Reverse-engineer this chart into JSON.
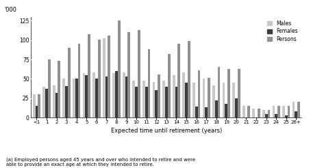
{
  "categories": [
    "<1",
    "1",
    "2",
    "3",
    "4",
    "5",
    "6",
    "7",
    "8",
    "9",
    "10",
    "11",
    "12",
    "13",
    "14",
    "15",
    "16",
    "17",
    "18",
    "19",
    "20",
    "21",
    "22",
    "23",
    "24",
    "25",
    "26+"
  ],
  "males": [
    30,
    40,
    42,
    50,
    50,
    57,
    58,
    102,
    57,
    58,
    48,
    48,
    46,
    48,
    55,
    58,
    45,
    50,
    42,
    45,
    45,
    15,
    12,
    10,
    15,
    15,
    20
  ],
  "females": [
    15,
    37,
    32,
    41,
    50,
    55,
    50,
    53,
    60,
    53,
    40,
    40,
    35,
    40,
    40,
    45,
    14,
    13,
    22,
    18,
    25,
    0,
    0,
    5,
    5,
    3,
    8
  ],
  "persons": [
    30,
    75,
    73,
    90,
    95,
    108,
    101,
    106,
    125,
    110,
    113,
    88,
    56,
    82,
    95,
    99,
    61,
    51,
    65,
    63,
    63,
    15,
    12,
    10,
    15,
    15,
    20
  ],
  "males_color": "#c8c8c8",
  "females_color": "#3c3c3c",
  "persons_color": "#909090",
  "ylabel": "'000",
  "xlabel": "Expected time until retirement (years)",
  "ylim": [
    0,
    130
  ],
  "yticks": [
    0,
    25,
    50,
    75,
    100,
    125
  ],
  "footnote": "(a) Employed persons aged 45 years and over who intended to retire and were\nable to provide an exact age at which they intended to retire.",
  "legend_labels": [
    "Males",
    "Females",
    "Persons"
  ]
}
